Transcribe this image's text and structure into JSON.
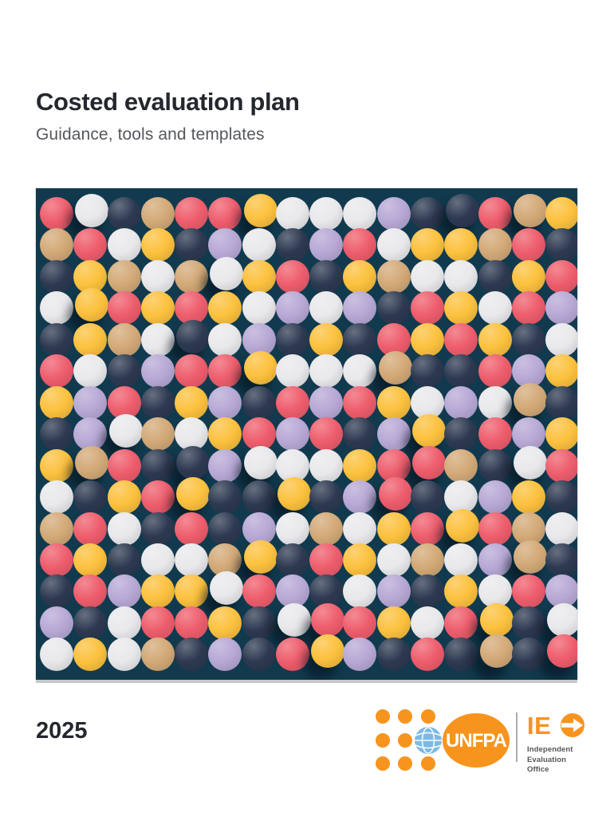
{
  "header": {
    "title": "Costed evaluation plan",
    "subtitle": "Guidance, tools and templates"
  },
  "artwork": {
    "background": "#113a4e",
    "edge_shadow": "#c6c8ca",
    "columns": 16,
    "rows": 15,
    "palette": {
      "R": "#ee5d6c",
      "W": "#e9e9ec",
      "N": "#2c3950",
      "T": "#d3a977",
      "Y": "#fcc13e",
      "L": "#b7a8d5"
    },
    "palette_legend": {
      "R": "coral-red",
      "W": "white",
      "N": "dark-navy",
      "T": "tan",
      "Y": "yellow",
      "L": "lavender"
    },
    "grid": [
      "RWNTRRYWWWLNNRTY",
      "TRWYNLWNLRWYYTRN",
      "NYTWTWYRNYTWWNYR",
      "WYRYRYWLWLNRYWRL",
      "NYTWNWLNYNRYRYNW",
      "RWNLRRYWWWTNNRLY",
      "YLRNYLNRLRYWLWTN",
      "NLWTWYRLRNLYNRLY",
      "YTRNNLWWWYRRTNWR",
      "WNYRYNNYNLRNWLYN",
      "TRWNRNLWTWYRYRTW",
      "RYNWWTYNRYWTWLTN",
      "NRLYYWRLNWLNYWRL",
      "LNWRRYNWRRYWRYNW",
      "WYWTNLNRYLNRNTNR"
    ],
    "raised": [
      [
        0,
        1
      ],
      [
        0,
        6
      ],
      [
        0,
        12
      ],
      [
        0,
        14
      ],
      [
        2,
        5
      ],
      [
        3,
        1
      ],
      [
        4,
        4
      ],
      [
        5,
        6
      ],
      [
        5,
        10
      ],
      [
        6,
        14
      ],
      [
        7,
        2
      ],
      [
        7,
        11
      ],
      [
        8,
        1
      ],
      [
        8,
        4
      ],
      [
        8,
        6
      ],
      [
        8,
        11
      ],
      [
        8,
        14
      ],
      [
        9,
        4
      ],
      [
        9,
        7
      ],
      [
        9,
        10
      ],
      [
        10,
        12
      ],
      [
        11,
        6
      ],
      [
        11,
        14
      ],
      [
        12,
        5
      ],
      [
        13,
        7
      ],
      [
        13,
        8
      ],
      [
        13,
        13
      ],
      [
        13,
        15
      ],
      [
        14,
        8
      ],
      [
        14,
        13
      ],
      [
        14,
        15
      ]
    ]
  },
  "footer": {
    "year": "2025",
    "unfpa": {
      "label": "UNFPA",
      "orange": "#f7941e",
      "globe_blue": "#7db9e5"
    },
    "ieo": {
      "acronym_prefix": "IE",
      "office_lines": [
        "Independent",
        "Evaluation",
        "Office"
      ],
      "orange": "#f7941e",
      "text_color": "#55565a",
      "divider_color": "#a9adb2"
    }
  }
}
